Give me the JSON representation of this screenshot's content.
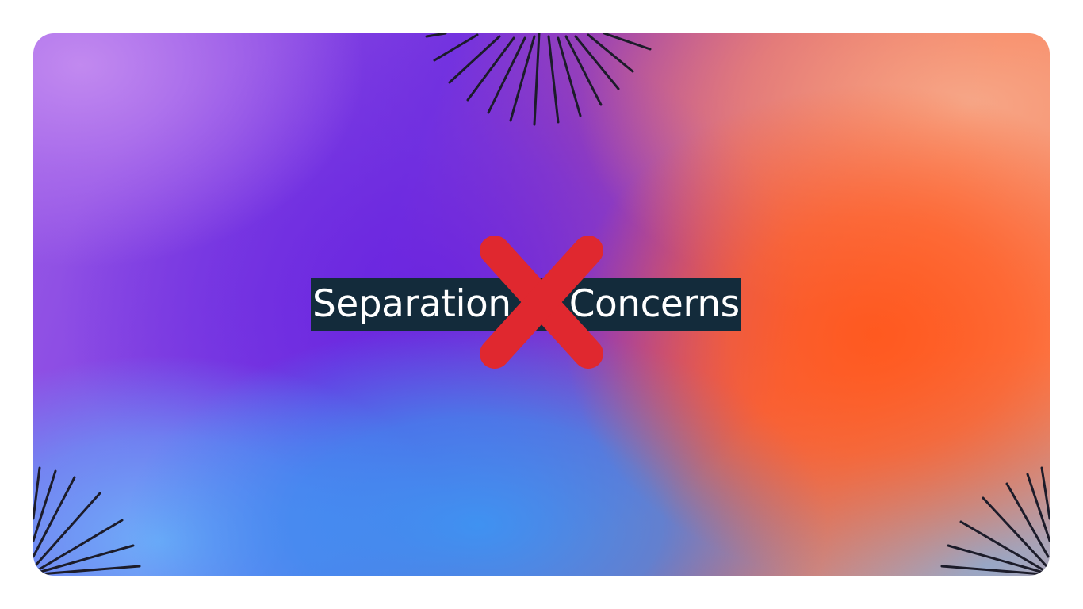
{
  "slide": {
    "title": "Separation of Concerns",
    "accent_color": "#132b3b",
    "cross_color": "#e0282f"
  },
  "icons": {
    "strike": "x-cross-icon",
    "decor": "sunburst-rays-icon"
  }
}
